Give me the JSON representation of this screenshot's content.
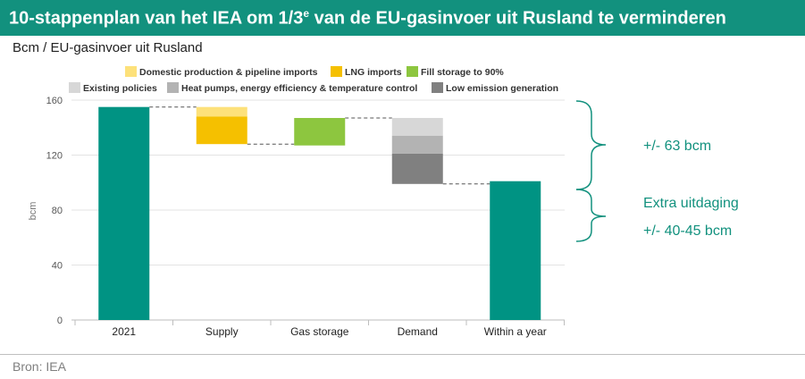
{
  "header": {
    "title_main": "10-stappenplan van het IEA om 1/3",
    "title_sup": "e",
    "title_rest": " van de EU-gasinvoer uit Rusland te verminderen"
  },
  "subtitle": "Bcm / EU-gasinvoer uit Rusland",
  "source": "Bron: IEA",
  "colors": {
    "teal": "#009383",
    "domestic": "#fde17a",
    "lng": "#f5c000",
    "storage": "#8dc63f",
    "existing": "#d7d7d7",
    "heat": "#b3b3b3",
    "lowemission": "#808080",
    "annotation": "#12917e"
  },
  "chart_data": {
    "type": "bar",
    "subtype": "waterfall",
    "ylabel": "bcm",
    "ylim": [
      0,
      160
    ],
    "yticks": [
      0,
      40,
      80,
      120,
      160
    ],
    "grid": true,
    "legend_position": "top",
    "categories": [
      "2021",
      "Supply",
      "Gas storage",
      "Demand",
      "Within a year"
    ],
    "legend": [
      {
        "key": "domestic",
        "label": "Domestic production & pipeline imports"
      },
      {
        "key": "lng",
        "label": "LNG imports"
      },
      {
        "key": "storage",
        "label": "Fill storage to 90%"
      },
      {
        "key": "existing",
        "label": "Existing policies"
      },
      {
        "key": "heat",
        "label": "Heat pumps, energy efficiency & temperature control"
      },
      {
        "key": "lowemission",
        "label": "Low emission generation"
      }
    ],
    "bars": [
      {
        "category": "2021",
        "key": "teal",
        "bottom": 0,
        "top": 155
      },
      {
        "category": "Supply",
        "key": "domestic",
        "bottom": 148,
        "top": 155
      },
      {
        "category": "Supply",
        "key": "lng",
        "bottom": 128,
        "top": 148
      },
      {
        "category": "Gas storage",
        "key": "storage",
        "bottom": 127,
        "top": 147
      },
      {
        "category": "Demand",
        "key": "existing",
        "bottom": 134,
        "top": 147
      },
      {
        "category": "Demand",
        "key": "heat",
        "bottom": 121,
        "top": 134
      },
      {
        "category": "Demand",
        "key": "lowemission",
        "bottom": 99,
        "top": 121
      },
      {
        "category": "Within a year",
        "key": "teal",
        "bottom": 0,
        "top": 101
      }
    ],
    "connectors": [
      {
        "from": 0,
        "to": 1,
        "y": 155
      },
      {
        "from": 1,
        "to": 2,
        "y": 128
      },
      {
        "from": 2,
        "to": 3,
        "y": 147
      },
      {
        "from": 3,
        "to": 4,
        "y": 99
      }
    ]
  },
  "annotations": {
    "reduction": "+/- 63 bcm",
    "extra_line1": "Extra uitdaging",
    "extra_line2": "+/- 40-45 bcm"
  }
}
